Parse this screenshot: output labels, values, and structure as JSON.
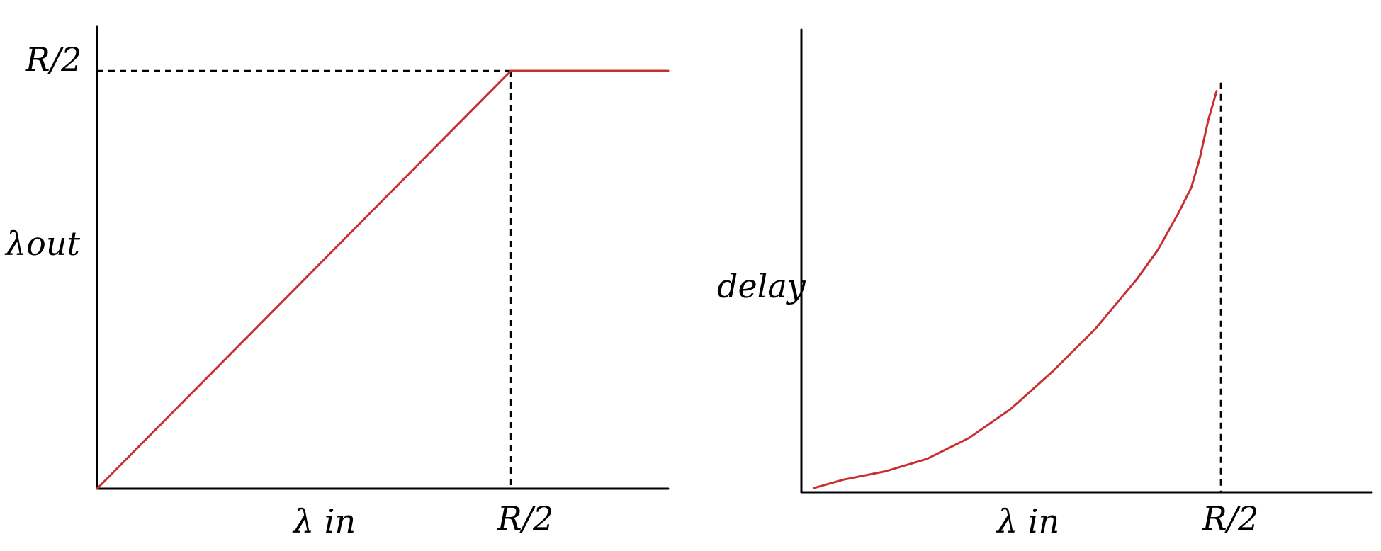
{
  "chart_data": [
    {
      "type": "line",
      "xlabel": "λ in",
      "ylabel": "λout",
      "x_tick_label": "R/2",
      "y_tick_label": "R/2",
      "xlim": [
        0,
        1.38
      ],
      "ylim": [
        0,
        1.0
      ],
      "grid": false,
      "series": [
        {
          "x": [
            0,
            1,
            1.38
          ],
          "y": [
            0,
            1,
            1
          ]
        }
      ],
      "reference_lines": {
        "vertical_x": 1,
        "horizontal_y": 1
      }
    },
    {
      "type": "line",
      "xlabel": "λ in",
      "ylabel": "delay",
      "x_tick_label": "R/2",
      "xlim": [
        0,
        1.36
      ],
      "ylim": [
        0,
        1.0
      ],
      "grid": false,
      "series": [
        {
          "x": [
            0.03,
            0.1,
            0.2,
            0.3,
            0.4,
            0.5,
            0.6,
            0.7,
            0.8,
            0.85,
            0.9,
            0.93,
            0.95,
            0.97,
            0.99
          ],
          "y": [
            0.01,
            0.03,
            0.05,
            0.08,
            0.13,
            0.2,
            0.29,
            0.39,
            0.51,
            0.58,
            0.67,
            0.73,
            0.8,
            0.89,
            0.96
          ]
        }
      ],
      "asymptote_x": 1
    }
  ]
}
